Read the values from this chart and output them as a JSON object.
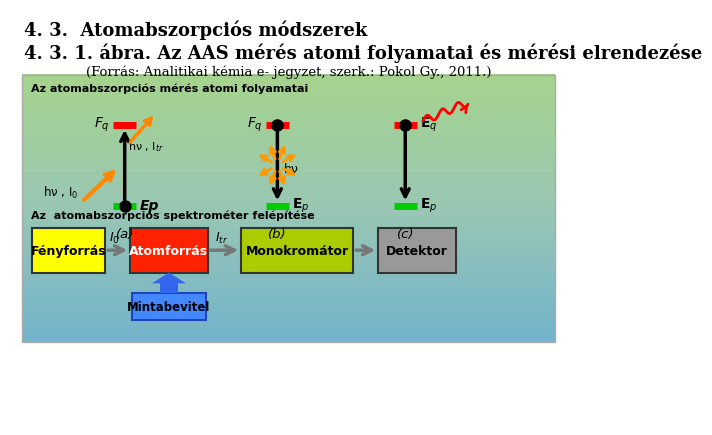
{
  "title1": "4. 3.  Atomabszorpciós módszerek",
  "title2": "4. 3. 1. ábra. Az AAS mérés atomi folyamatai és mérési elrendezése",
  "subtitle": "(Forrás: Analitikai kémia e- jegyzet, szerk.: Pokol Gy., 2011.)",
  "panel1_title": "Az atomabszorpciós mérés atomi folyamatai",
  "panel2_title": "Az  atomabszorpciós spektrométer felépítése",
  "boxes": [
    {
      "label": "Fényforrás",
      "fc": "#FFFF00",
      "tc": "#000000"
    },
    {
      "label": "Atomforrás",
      "fc": "#FF2200",
      "tc": "#FFFFFF"
    },
    {
      "label": "Monokromátor",
      "fc": "#AACC00",
      "tc": "#000000"
    },
    {
      "label": "Detektor",
      "fc": "#999999",
      "tc": "#000000"
    }
  ],
  "mintabevitel_label": "Mintabevitel",
  "mintabevitel_fc": "#4488FF",
  "bg_color": "#FFFFFF"
}
